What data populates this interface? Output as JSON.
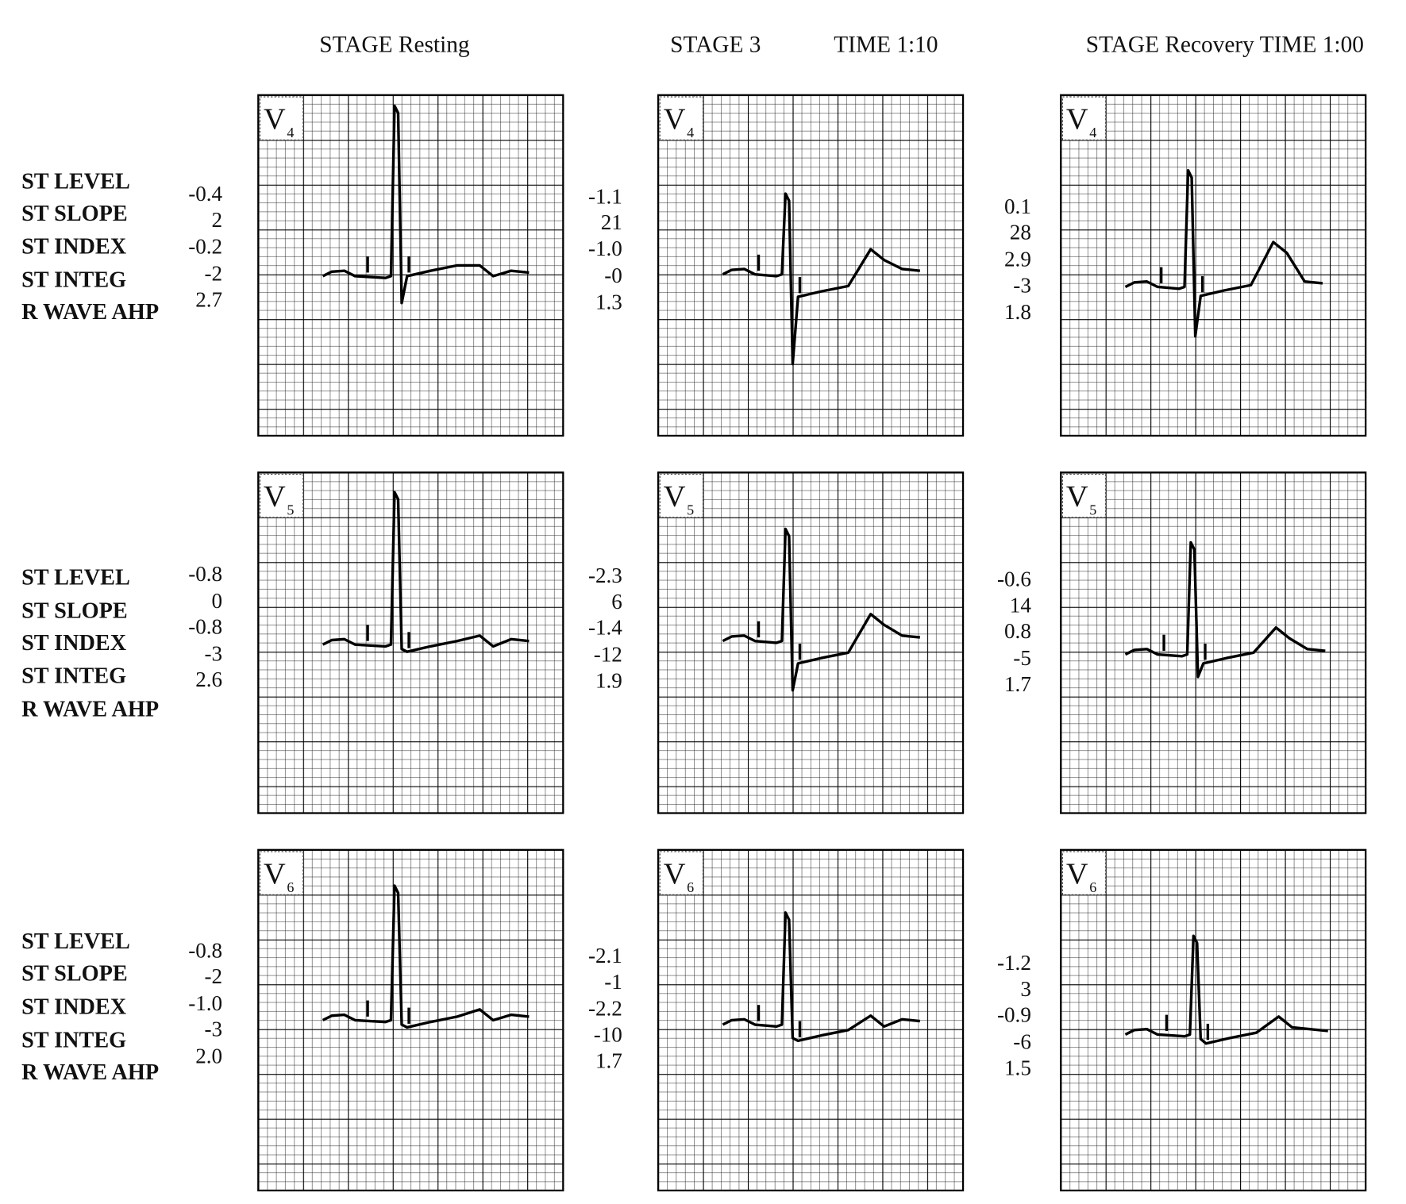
{
  "columns": [
    {
      "header": [
        "STAGE Resting"
      ]
    },
    {
      "header": [
        "STAGE 3",
        "TIME 1:10"
      ]
    },
    {
      "header": [
        "STAGE Recovery TIME 1:00"
      ]
    }
  ],
  "rows": [
    {
      "lead": {
        "letter": "V",
        "sub": "4"
      },
      "labels": [
        "ST LEVEL",
        "ST SLOPE",
        "ST INDEX",
        "ST INTEG",
        "R WAVE AHP"
      ],
      "values": [
        [
          "-0.4",
          "2",
          "-0.2",
          "-2",
          "2.7"
        ],
        [
          "-1.1",
          "21",
          "-1.0",
          "-0",
          "1.3"
        ],
        [
          "0.1",
          "28",
          "2.9",
          "-3",
          "1.8"
        ]
      ]
    },
    {
      "lead": {
        "letter": "V",
        "sub": "5"
      },
      "labels": [
        "ST LEVEL",
        "ST SLOPE",
        "ST INDEX",
        "ST INTEG",
        "R WAVE AHP"
      ],
      "values": [
        [
          "-0.8",
          "0",
          "-0.8",
          "-3",
          "2.6"
        ],
        [
          "-2.3",
          "6",
          "-1.4",
          "-12",
          "1.9"
        ],
        [
          "-0.6",
          "14",
          "0.8",
          "-5",
          "1.7"
        ]
      ]
    },
    {
      "lead": {
        "letter": "V",
        "sub": "6"
      },
      "labels": [
        "ST LEVEL",
        "ST SLOPE",
        "ST INDEX",
        "ST INTEG",
        "R WAVE AHP"
      ],
      "values": [
        [
          "-0.8",
          "-2",
          "-1.0",
          "-3",
          "2.0"
        ],
        [
          "-2.1",
          "-1",
          "-2.2",
          "-10",
          "1.7"
        ],
        [
          "-1.2",
          "3",
          "-0.9",
          "-6",
          "1.5"
        ]
      ]
    }
  ]
}
